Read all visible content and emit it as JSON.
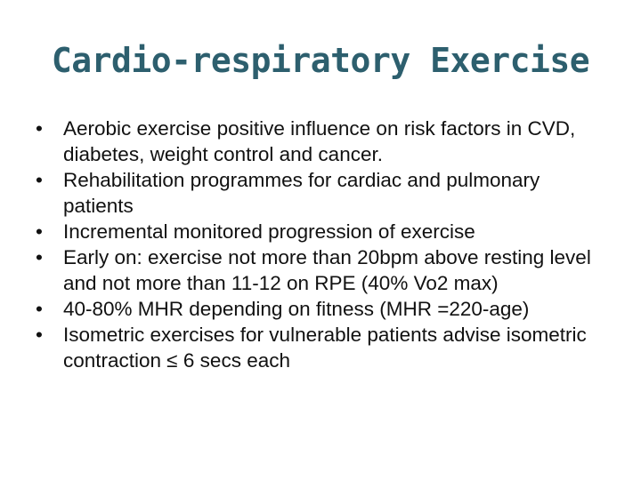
{
  "slide": {
    "title": "Cardio-respiratory Exercise",
    "bullet_symbol": "•",
    "bullets": [
      "Aerobic exercise positive influence on risk factors in CVD, diabetes, weight control and cancer.",
      "Rehabilitation programmes for cardiac and pulmonary patients",
      "Incremental monitored progression of exercise",
      "Early on: exercise not more than 20bpm above resting level and not more than 11-12 on RPE (40% Vo2 max)",
      "40-80% MHR depending on fitness (MHR =220-age)",
      "Isometric exercises for vulnerable patients advise isometric contraction ≤  6 secs each"
    ],
    "colors": {
      "title": "#2d5f6e",
      "text": "#111111",
      "background": "#ffffff"
    }
  }
}
